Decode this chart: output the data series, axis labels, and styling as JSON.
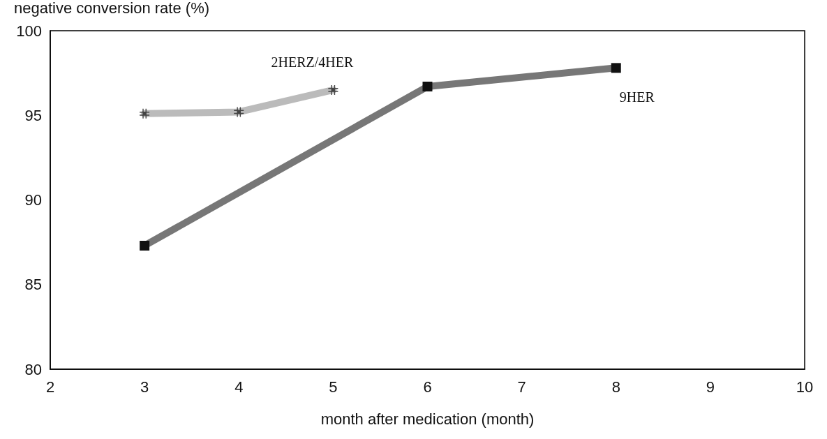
{
  "chart_data": {
    "type": "line",
    "ylabel": "negative conversion rate (%)",
    "xlabel": "month after medication (month)",
    "xlim": [
      2,
      10
    ],
    "xticks": [
      2,
      3,
      4,
      5,
      6,
      7,
      8,
      9,
      10
    ],
    "ylim": [
      80,
      100
    ],
    "yticks": [
      80,
      85,
      90,
      95,
      100
    ],
    "grid": false,
    "legend": false,
    "series": [
      {
        "name": "2HERZ/4HER",
        "color": "#bbbbbb",
        "marker": "cross",
        "x": [
          3,
          4,
          5
        ],
        "values": [
          95.1,
          95.2,
          96.5
        ]
      },
      {
        "name": "9HER",
        "color": "#777777",
        "marker": "square",
        "x": [
          3,
          6,
          8
        ],
        "values": [
          87.3,
          96.7,
          97.8
        ]
      }
    ]
  }
}
